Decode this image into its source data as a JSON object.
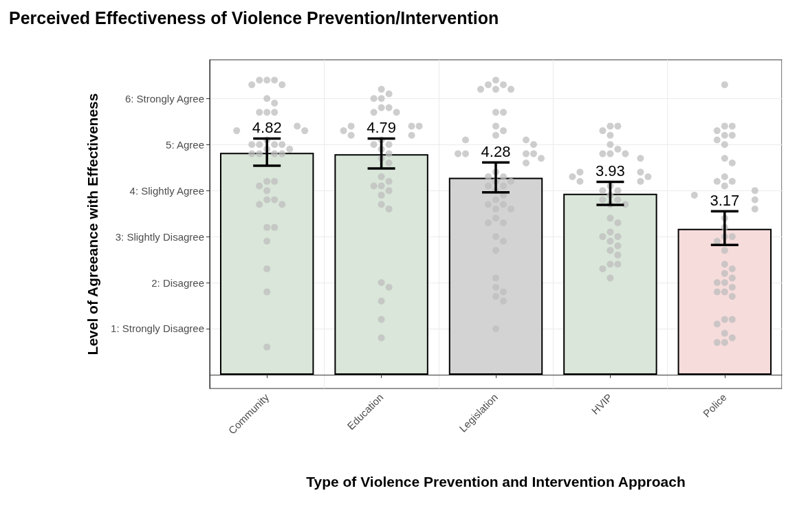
{
  "chart_data": {
    "type": "bar",
    "title": "Perceived Effectiveness of Violence Prevention/Intervention",
    "xlabel": "Type of Violence Prevention and Intervention Approach",
    "ylabel": "Level of Agreeance with Effectiveness",
    "categories": [
      "Community",
      "Education",
      "Legislation",
      "HVIP",
      "Police"
    ],
    "ylim": [
      -0.3,
      6.84
    ],
    "yticks": [
      {
        "value": 1,
        "label": "1: Strongly Disagree"
      },
      {
        "value": 2,
        "label": "2: Disagree"
      },
      {
        "value": 3,
        "label": "3: Slightly Disagree"
      },
      {
        "value": 4,
        "label": "4: Slightly Agree"
      },
      {
        "value": 5,
        "label": "5: Agree"
      },
      {
        "value": 6,
        "label": "6: Strongly Agree"
      }
    ],
    "grid": true,
    "series": [
      {
        "values": [
          4.82,
          4.79,
          4.28,
          3.93,
          3.17
        ],
        "value_labels": [
          "4.82",
          "4.79",
          "4.28",
          "3.93",
          "3.17"
        ],
        "colors": [
          "#d9e6d9",
          "#d9e6d9",
          "#d3d3d3",
          "#d9e6d9",
          "#f7dcdc"
        ],
        "errors": [
          [
            4.54,
            5.13
          ],
          [
            4.48,
            5.13
          ],
          [
            3.96,
            4.61
          ],
          [
            3.69,
            4.19
          ],
          [
            2.82,
            3.55
          ]
        ]
      },
      {
        "type": "scatter",
        "color": "#bdbdbd",
        "marker": "circle",
        "x": [
          "Community",
          "Community",
          "Community",
          "Community",
          "Community",
          "Community",
          "Community",
          "Community",
          "Community",
          "Community",
          "Community",
          "Community",
          "Community",
          "Community",
          "Community",
          "Community",
          "Community",
          "Community",
          "Community",
          "Community",
          "Community",
          "Community",
          "Community",
          "Community",
          "Community",
          "Community",
          "Community",
          "Community",
          "Community",
          "Community",
          "Community",
          "Community",
          "Community",
          "Community",
          "Community",
          "Community",
          "Community",
          "Community",
          "Education",
          "Education",
          "Education",
          "Education",
          "Education",
          "Education",
          "Education",
          "Education",
          "Education",
          "Education",
          "Education",
          "Education",
          "Education",
          "Education",
          "Education",
          "Education",
          "Education",
          "Education",
          "Education",
          "Education",
          "Education",
          "Education",
          "Education",
          "Education",
          "Education",
          "Education",
          "Education",
          "Education",
          "Education",
          "Education",
          "Education",
          "Education",
          "Education",
          "Education",
          "Legislation",
          "Legislation",
          "Legislation",
          "Legislation",
          "Legislation",
          "Legislation",
          "Legislation",
          "Legislation",
          "Legislation",
          "Legislation",
          "Legislation",
          "Legislation",
          "Legislation",
          "Legislation",
          "Legislation",
          "Legislation",
          "Legislation",
          "Legislation",
          "Legislation",
          "Legislation",
          "Legislation",
          "Legislation",
          "Legislation",
          "Legislation",
          "Legislation",
          "Legislation",
          "Legislation",
          "Legislation",
          "Legislation",
          "Legislation",
          "Legislation",
          "Legislation",
          "Legislation",
          "Legislation",
          "Legislation",
          "Legislation",
          "Legislation",
          "Legislation",
          "Legislation",
          "Legislation",
          "Legislation",
          "Legislation",
          "Legislation",
          "Legislation",
          "Legislation",
          "Legislation",
          "HVIP",
          "HVIP",
          "HVIP",
          "HVIP",
          "HVIP",
          "HVIP",
          "HVIP",
          "HVIP",
          "HVIP",
          "HVIP",
          "HVIP",
          "HVIP",
          "HVIP",
          "HVIP",
          "HVIP",
          "HVIP",
          "HVIP",
          "HVIP",
          "HVIP",
          "HVIP",
          "HVIP",
          "HVIP",
          "HVIP",
          "HVIP",
          "HVIP",
          "HVIP",
          "HVIP",
          "HVIP",
          "HVIP",
          "HVIP",
          "HVIP",
          "HVIP",
          "HVIP",
          "HVIP",
          "HVIP",
          "HVIP",
          "HVIP",
          "Police",
          "Police",
          "Police",
          "Police",
          "Police",
          "Police",
          "Police",
          "Police",
          "Police",
          "Police",
          "Police",
          "Police",
          "Police",
          "Police",
          "Police",
          "Police",
          "Police",
          "Police",
          "Police",
          "Police",
          "Police",
          "Police",
          "Police",
          "Police",
          "Police",
          "Police",
          "Police",
          "Police",
          "Police",
          "Police",
          "Police",
          "Police",
          "Police",
          "Police",
          "Police",
          "Police",
          "Police",
          "Police",
          "Police",
          "Police",
          "Police"
        ],
        "values": [
          6.4,
          6.4,
          6.4,
          6.3,
          6.3,
          6.0,
          5.9,
          5.7,
          5.7,
          5.7,
          5.4,
          5.3,
          5.3,
          5.1,
          5.0,
          5.0,
          5.0,
          5.0,
          4.9,
          4.9,
          4.8,
          4.8,
          4.8,
          4.8,
          4.2,
          4.2,
          4.1,
          4.0,
          3.8,
          3.8,
          3.7,
          3.7,
          3.2,
          3.2,
          2.9,
          2.3,
          1.8,
          0.6,
          6.2,
          6.1,
          6.0,
          6.0,
          5.8,
          5.8,
          5.7,
          5.7,
          5.4,
          5.4,
          5.4,
          5.3,
          5.2,
          5.2,
          5.1,
          5.0,
          5.0,
          4.9,
          4.8,
          4.7,
          4.6,
          4.3,
          4.2,
          4.1,
          4.1,
          4.0,
          3.9,
          3.7,
          3.6,
          2.0,
          1.9,
          1.6,
          1.2,
          0.8,
          6.4,
          6.3,
          6.3,
          6.2,
          6.2,
          6.2,
          5.7,
          5.7,
          5.4,
          5.3,
          5.2,
          5.1,
          5.1,
          5.0,
          4.8,
          4.8,
          4.8,
          4.8,
          4.7,
          4.6,
          4.4,
          4.3,
          4.3,
          4.2,
          4.2,
          4.1,
          4.1,
          4.0,
          3.9,
          3.8,
          3.7,
          3.7,
          3.6,
          3.6,
          3.4,
          3.3,
          3.3,
          3.0,
          2.9,
          2.7,
          2.1,
          1.9,
          1.8,
          1.7,
          1.6,
          1.0,
          5.4,
          5.4,
          5.3,
          5.2,
          5.0,
          4.9,
          4.8,
          4.8,
          4.8,
          4.7,
          4.4,
          4.4,
          4.3,
          4.3,
          4.2,
          4.2,
          4.1,
          4.0,
          4.0,
          3.9,
          3.8,
          3.8,
          3.7,
          3.7,
          3.4,
          3.3,
          3.1,
          3.0,
          3.0,
          2.9,
          2.8,
          2.7,
          2.6,
          2.4,
          2.4,
          2.3,
          2.1,
          6.3,
          5.4,
          5.4,
          5.3,
          5.2,
          5.2,
          5.1,
          5.0,
          4.7,
          4.6,
          4.3,
          4.2,
          4.2,
          4.1,
          4.0,
          3.9,
          3.8,
          3.6,
          3.4,
          3.2,
          3.0,
          3.0,
          2.9,
          2.7,
          2.4,
          2.3,
          2.2,
          2.1,
          2.0,
          2.0,
          1.9,
          1.8,
          1.8,
          1.7,
          1.2,
          1.2,
          1.1,
          0.9,
          0.8,
          0.7,
          0.7
        ]
      }
    ]
  }
}
